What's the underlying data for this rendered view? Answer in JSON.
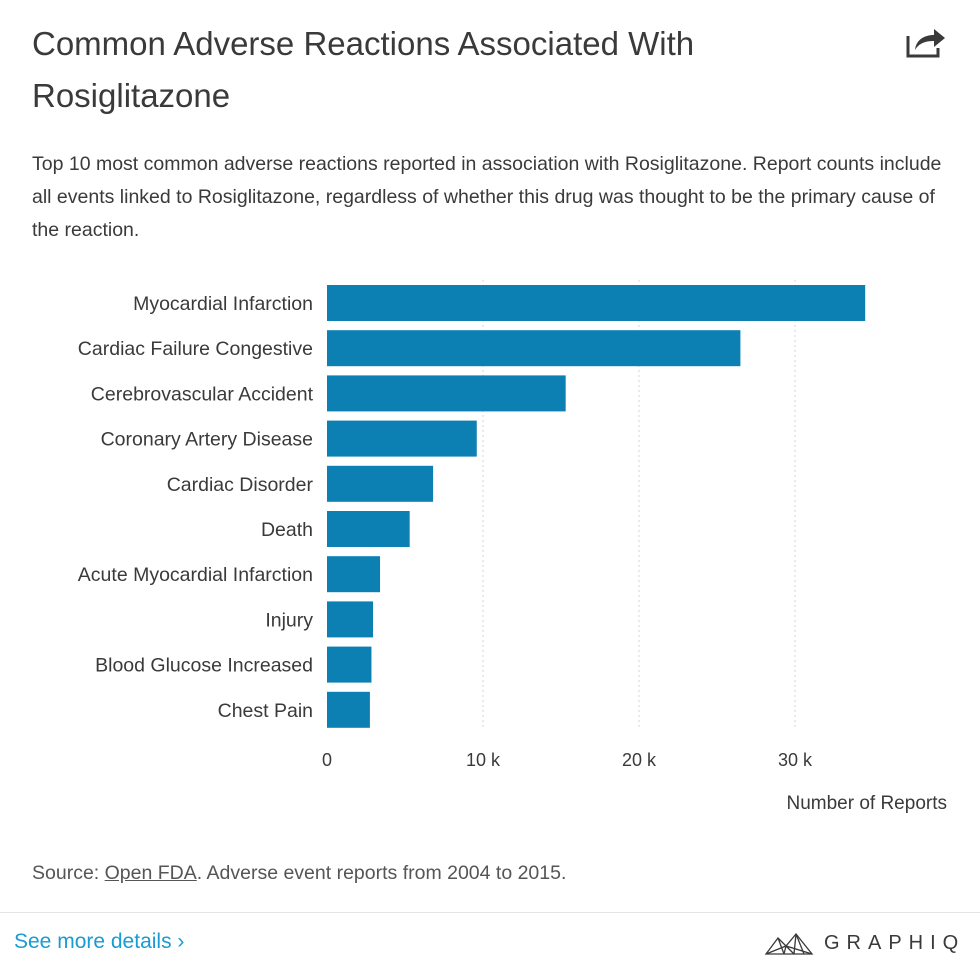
{
  "header": {
    "title": "Common Adverse Reactions Associated With Rosiglitazone",
    "share_icon": "share-icon",
    "subtitle": "Top 10 most common adverse reactions reported in association with Rosiglitazone. Report counts include all events linked to Rosiglitazone, regardless of whether this drug was thought to be the primary cause of the reaction."
  },
  "chart_data": {
    "type": "bar",
    "orientation": "horizontal",
    "title": "Common Adverse Reactions Associated With Rosiglitazone",
    "xlabel": "Number of Reports",
    "ylabel": "",
    "categories": [
      "Myocardial Infarction",
      "Cardiac Failure Congestive",
      "Cerebrovascular Accident",
      "Coronary Artery Disease",
      "Cardiac Disorder",
      "Death",
      "Acute Myocardial Infarction",
      "Injury",
      "Blood Glucose Increased",
      "Chest Pain"
    ],
    "values": [
      34500,
      26500,
      15300,
      9600,
      6800,
      5300,
      3400,
      2950,
      2850,
      2750
    ],
    "xlim": [
      0,
      35000
    ],
    "xticks": [
      0,
      10000,
      20000,
      30000
    ],
    "xtick_labels": [
      "0",
      "10 k",
      "20 k",
      "30 k"
    ],
    "grid": true,
    "bar_color": "#0c80b3",
    "grid_color": "#d6d6d6"
  },
  "footer": {
    "source_prefix": "Source: ",
    "source_link": "Open FDA",
    "source_suffix": ". Adverse event reports from 2004 to 2015.",
    "see_more": "See more details ›",
    "brand_name": "GRAPHIQ",
    "brand_icon": "graphiq-logo-icon",
    "link_color": "#1a9bd1"
  }
}
